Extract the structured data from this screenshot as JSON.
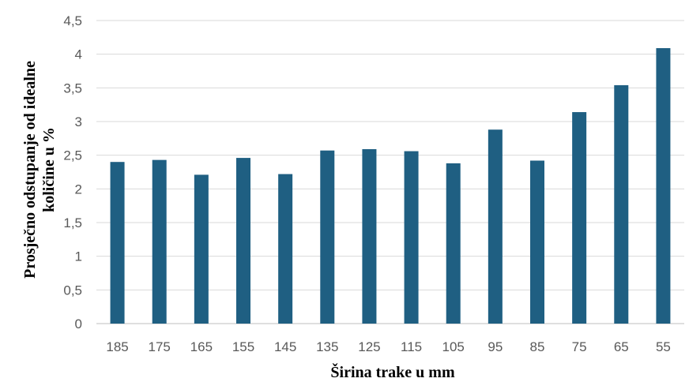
{
  "chart_data": {
    "type": "bar",
    "xlabel": "Širina trake u mm",
    "ylabel_lines": [
      "Prosječno odstupanje od idealne",
      "količine u %"
    ],
    "categories": [
      "185",
      "175",
      "165",
      "155",
      "145",
      "135",
      "125",
      "115",
      "105",
      "95",
      "85",
      "75",
      "65",
      "55"
    ],
    "values": [
      2.4,
      2.43,
      2.21,
      2.46,
      2.22,
      2.57,
      2.59,
      2.56,
      2.38,
      2.88,
      2.42,
      3.14,
      3.54,
      4.09
    ],
    "ylim": [
      0,
      4.5
    ],
    "y_ticks": [
      "0",
      "0,5",
      "1",
      "1,5",
      "2",
      "2,5",
      "3",
      "3,5",
      "4",
      "4,5"
    ],
    "grid": true,
    "legend": "none",
    "bar_color": "#1f5f82",
    "grid_color": "#d9d9d9"
  }
}
